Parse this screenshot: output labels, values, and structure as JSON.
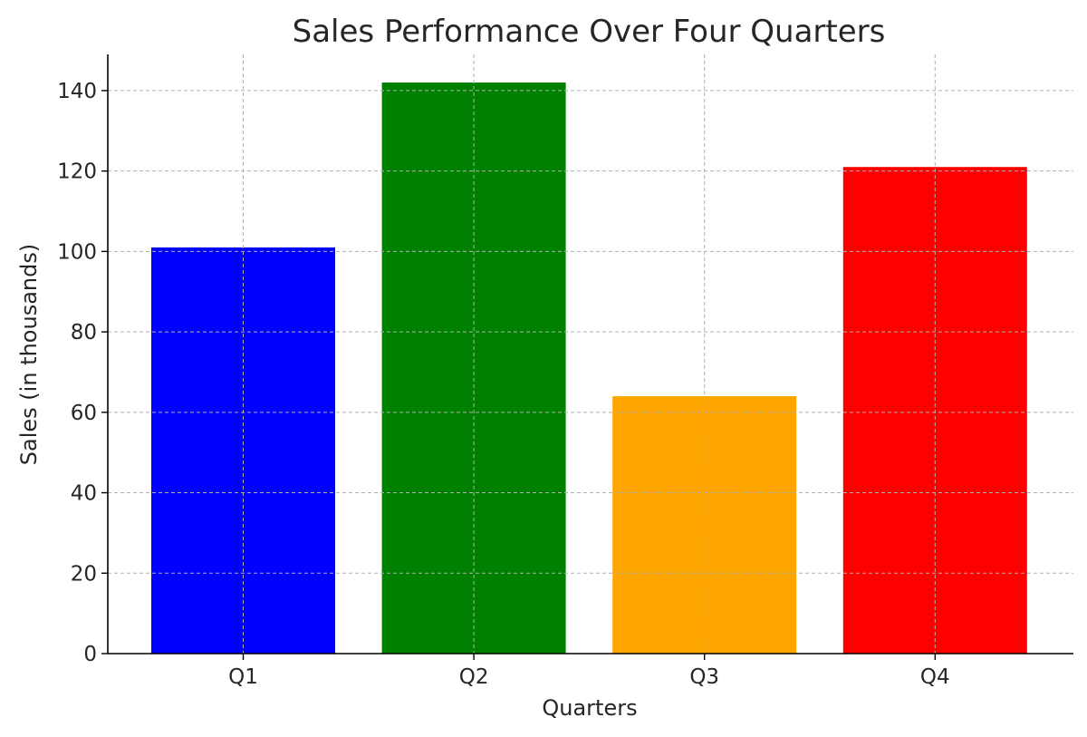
{
  "chart_data": {
    "type": "bar",
    "title": "Sales Performance Over Four Quarters",
    "xlabel": "Quarters",
    "ylabel": "Sales (in thousands)",
    "categories": [
      "Q1",
      "Q2",
      "Q3",
      "Q4"
    ],
    "values": [
      101,
      142,
      64,
      121
    ],
    "colors": [
      "#0000ff",
      "#008000",
      "#ffa500",
      "#ff0000"
    ],
    "ylim": [
      0,
      149
    ],
    "yticks": [
      0,
      20,
      40,
      60,
      80,
      100,
      120,
      140
    ],
    "grid": true,
    "legend": false
  }
}
